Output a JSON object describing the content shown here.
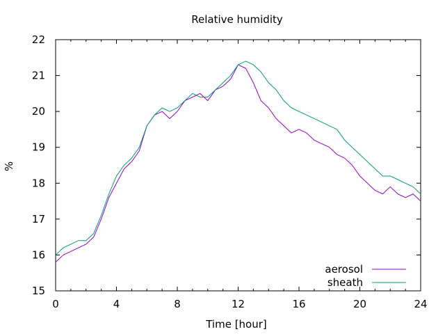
{
  "chart_data": {
    "type": "line",
    "title": "Relative humidity",
    "xlabel": "Time [hour]",
    "ylabel": "%",
    "xlim": [
      0,
      24
    ],
    "ylim": [
      15,
      22
    ],
    "xticks": [
      0,
      4,
      8,
      12,
      16,
      20,
      24
    ],
    "yticks": [
      15,
      16,
      17,
      18,
      19,
      20,
      21,
      22
    ],
    "grid": false,
    "legend_position": "bottom-right",
    "series": [
      {
        "name": "aerosol",
        "color": "#9400d3",
        "x": [
          0,
          0.5,
          1,
          1.5,
          2,
          2.5,
          3,
          3.5,
          4,
          4.5,
          5,
          5.5,
          6,
          6.5,
          7,
          7.5,
          8,
          8.5,
          9,
          9.5,
          10,
          10.5,
          11,
          11.5,
          12,
          12.5,
          13,
          13.5,
          14,
          14.5,
          15,
          15.5,
          16,
          16.5,
          17,
          17.5,
          18,
          18.5,
          19,
          19.5,
          20,
          20.5,
          21,
          21.5,
          22,
          22.5,
          23,
          23.5,
          24
        ],
        "values": [
          15.8,
          16.0,
          16.1,
          16.2,
          16.3,
          16.5,
          17.0,
          17.6,
          18.0,
          18.4,
          18.6,
          18.9,
          19.6,
          19.9,
          20.0,
          19.8,
          20.0,
          20.3,
          20.4,
          20.5,
          20.3,
          20.6,
          20.7,
          20.9,
          21.3,
          21.2,
          20.8,
          20.3,
          20.1,
          19.8,
          19.6,
          19.4,
          19.5,
          19.4,
          19.2,
          19.1,
          19.0,
          18.8,
          18.7,
          18.5,
          18.2,
          18.0,
          17.8,
          17.7,
          17.9,
          17.7,
          17.6,
          17.7,
          17.5
        ]
      },
      {
        "name": "sheath",
        "color": "#009e73",
        "x": [
          0,
          0.5,
          1,
          1.5,
          2,
          2.5,
          3,
          3.5,
          4,
          4.5,
          5,
          5.5,
          6,
          6.5,
          7,
          7.5,
          8,
          8.5,
          9,
          9.5,
          10,
          10.5,
          11,
          11.5,
          12,
          12.5,
          13,
          13.5,
          14,
          14.5,
          15,
          15.5,
          16,
          16.5,
          17,
          17.5,
          18,
          18.5,
          19,
          19.5,
          20,
          20.5,
          21,
          21.5,
          22,
          22.5,
          23,
          23.5,
          24
        ],
        "values": [
          16.0,
          16.2,
          16.3,
          16.4,
          16.4,
          16.6,
          17.1,
          17.7,
          18.2,
          18.5,
          18.7,
          19.0,
          19.6,
          19.9,
          20.1,
          20.0,
          20.1,
          20.3,
          20.5,
          20.4,
          20.4,
          20.6,
          20.8,
          21.0,
          21.3,
          21.4,
          21.3,
          21.1,
          20.8,
          20.6,
          20.3,
          20.1,
          20.0,
          19.9,
          19.8,
          19.7,
          19.6,
          19.5,
          19.2,
          19.0,
          18.8,
          18.6,
          18.4,
          18.2,
          18.2,
          18.1,
          18.0,
          17.9,
          17.7
        ]
      }
    ]
  }
}
